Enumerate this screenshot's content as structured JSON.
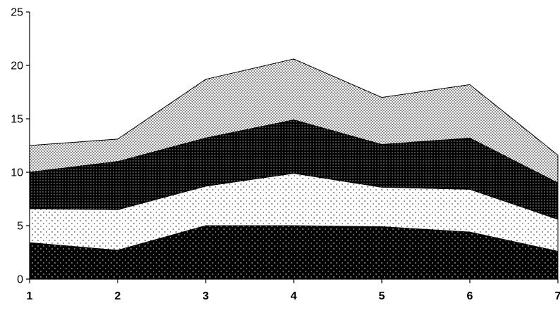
{
  "chart_data": {
    "type": "area",
    "stacked": true,
    "title": "",
    "xlabel": "",
    "ylabel": "",
    "x": [
      1,
      2,
      3,
      4,
      5,
      6,
      7
    ],
    "x_tick_labels": [
      "1",
      "2",
      "3",
      "4",
      "5",
      "6",
      "7"
    ],
    "ylim": [
      0,
      25
    ],
    "y_ticks": [
      0,
      5,
      10,
      15,
      20,
      25
    ],
    "y_tick_labels": [
      "0",
      "5",
      "10",
      "15",
      "20",
      "25"
    ],
    "grid": false,
    "legend": "none",
    "series": [
      {
        "values": [
          3.4,
          2.7,
          5.0,
          5.0,
          4.9,
          4.4,
          2.6
        ],
        "pattern": "black-dots"
      },
      {
        "values": [
          3.2,
          3.8,
          3.7,
          4.9,
          3.7,
          4.0,
          3.0
        ],
        "pattern": "sparse-dots"
      },
      {
        "values": [
          3.4,
          4.5,
          4.5,
          5.0,
          4.0,
          4.8,
          3.4
        ],
        "pattern": "dark-mesh"
      },
      {
        "values": [
          2.5,
          2.1,
          5.5,
          5.7,
          4.4,
          5.0,
          2.6
        ],
        "pattern": "fine-dots"
      }
    ],
    "colors": {
      "ink": "#000000",
      "paper": "#ffffff"
    }
  }
}
